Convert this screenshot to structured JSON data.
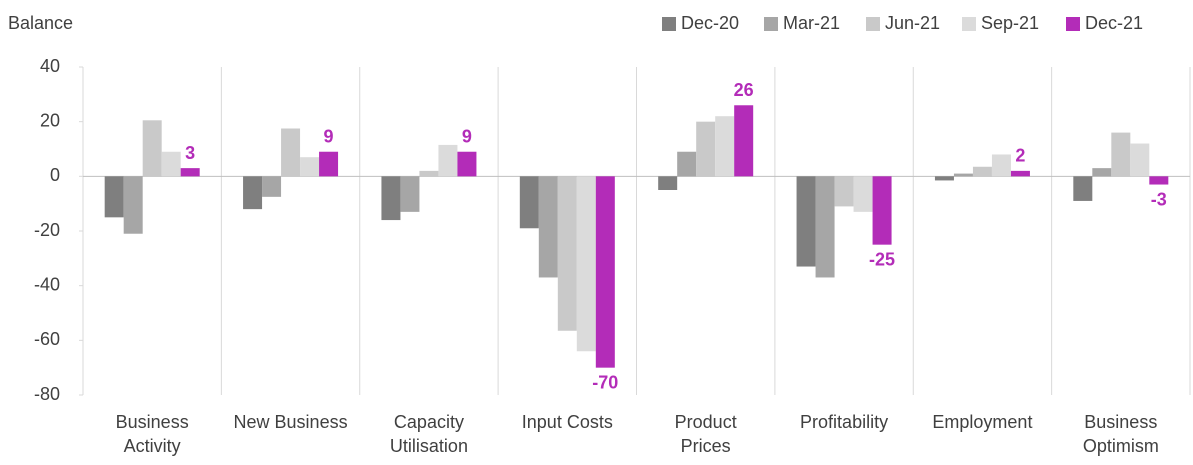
{
  "chart_data": {
    "type": "bar",
    "y_label": "Balance",
    "categories": [
      "Business\nActivity",
      "New Business",
      "Capacity\nUtilisation",
      "Input Costs",
      "Product\nPrices",
      "Profitability",
      "Employment",
      "Business\nOptimism"
    ],
    "series": [
      {
        "name": "Dec-20",
        "color": "#7f7f7f",
        "values": [
          -15,
          -12,
          -16,
          -19,
          -5,
          -33,
          -1.5,
          -9
        ]
      },
      {
        "name": "Mar-21",
        "color": "#a6a6a6",
        "values": [
          -21,
          -7.5,
          -13,
          -37,
          9,
          -37,
          1,
          3
        ]
      },
      {
        "name": "Jun-21",
        "color": "#c9c9c9",
        "values": [
          20.5,
          17.5,
          2,
          -56.5,
          20,
          -11,
          3.5,
          16
        ]
      },
      {
        "name": "Sep-21",
        "color": "#dbdbdb",
        "values": [
          9,
          7,
          11.5,
          -64,
          22,
          -13,
          8,
          12
        ]
      },
      {
        "name": "Dec-21",
        "color": "#b32cb8",
        "values": [
          3,
          9,
          9,
          -70,
          26,
          -25,
          2,
          -3
        ],
        "labelled": true
      }
    ],
    "ylim": [
      -80,
      40
    ],
    "yticks": [
      -80,
      -60,
      -40,
      -20,
      0,
      20,
      40
    ],
    "legend": "top-right"
  }
}
